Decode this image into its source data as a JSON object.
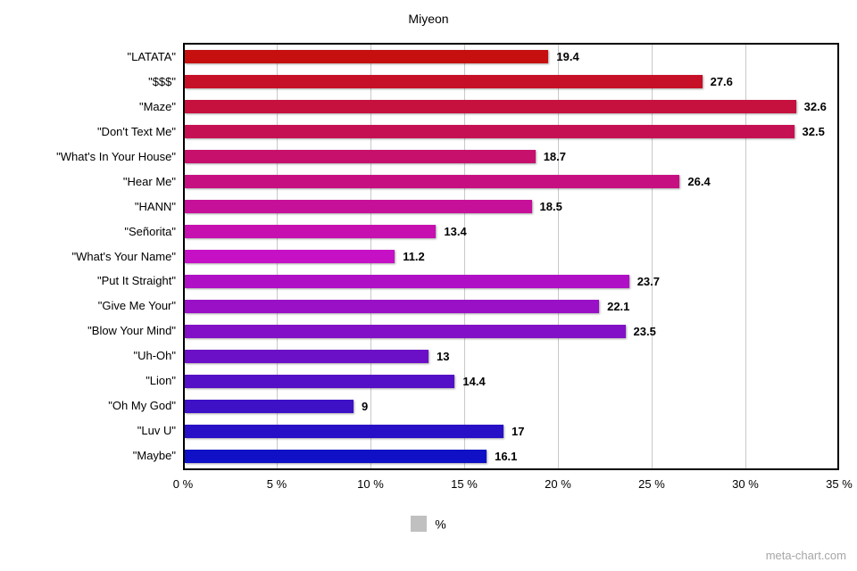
{
  "page": {
    "watermark": "meta-chart.com"
  },
  "chart_data": {
    "type": "bar",
    "orientation": "horizontal",
    "title": "Miyeon",
    "categories": [
      "\"LATATA\"",
      "\"$$$\"",
      "\"Maze\"",
      "\"Don't Text Me\"",
      "\"What's In Your House\"",
      "\"Hear Me\"",
      "\"HANN\"",
      "\"Señorita\"",
      "\"What's Your Name\"",
      "\"Put It Straight\"",
      "\"Give Me Your\"",
      "\"Blow Your Mind\"",
      "\"Uh-Oh\"",
      "\"Lion\"",
      "\"Oh My God\"",
      "\"Luv U\"",
      "\"Maybe\""
    ],
    "values": [
      19.4,
      27.6,
      32.6,
      32.5,
      18.7,
      26.4,
      18.5,
      13.4,
      11.2,
      23.7,
      22.1,
      23.5,
      13,
      14.4,
      9,
      17,
      16.1
    ],
    "value_labels": [
      "19.4",
      "27.6",
      "32.6",
      "32.5",
      "18.7",
      "26.4",
      "18.5",
      "13.4",
      "11.2",
      "23.7",
      "22.1",
      "23.5",
      "13",
      "14.4",
      "9",
      "17",
      "16.1"
    ],
    "bar_colors": [
      "#c61010",
      "#c61027",
      "#c6103e",
      "#c61054",
      "#c6106b",
      "#c61082",
      "#c61099",
      "#c610af",
      "#c610c6",
      "#af10c6",
      "#9910c6",
      "#8210c6",
      "#6b10c6",
      "#5410c6",
      "#3e10c6",
      "#2710c6",
      "#1010c6"
    ],
    "xlim": [
      0,
      35
    ],
    "x_ticks": [
      "0 %",
      "5 %",
      "10 %",
      "15 %",
      "20 %",
      "25 %",
      "30 %",
      "35 %"
    ],
    "x_tick_values": [
      0,
      5,
      10,
      15,
      20,
      25,
      30,
      35
    ],
    "grid": true,
    "gridline_color": "#c9c9c9",
    "plot_border_color": "#000000",
    "legend": {
      "label": "%",
      "swatch_color": "#c0c0c0",
      "position": "bottom"
    }
  }
}
